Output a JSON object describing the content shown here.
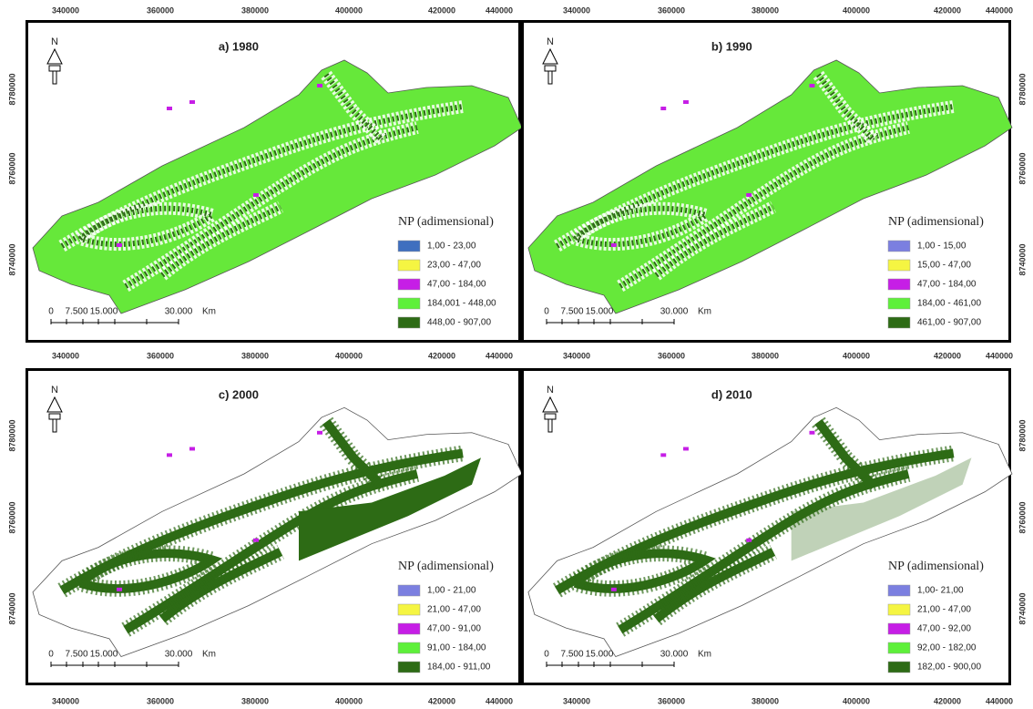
{
  "x_ticks": [
    "340000",
    "360000",
    "380000",
    "400000",
    "420000",
    "440000"
  ],
  "y_ticks": [
    "8780000",
    "8760000",
    "8740000"
  ],
  "north": "N",
  "scale_labels": [
    "0",
    "7.500",
    "15.000",
    "30.000",
    "Km"
  ],
  "panels": [
    {
      "title": "a) 1980",
      "legend": {
        "title": "NP (adimensional)",
        "items": [
          {
            "label": "1,00 - 23,00",
            "color": "#3f6fbf"
          },
          {
            "label": "23,00 - 47,00",
            "color": "#f5f542"
          },
          {
            "label": "47,00 - 184,00",
            "color": "#c61ee6"
          },
          {
            "label": "184,001 - 448,00",
            "color": "#5ef03a"
          },
          {
            "label": "448,00 - 907,00",
            "color": "#2d6b15"
          }
        ]
      }
    },
    {
      "title": "b) 1990",
      "legend": {
        "title": "NP (adimensional)",
        "items": [
          {
            "label": "1,00 - 15,00",
            "color": "#7b7fe0"
          },
          {
            "label": "15,00 - 47,00",
            "color": "#f5f542"
          },
          {
            "label": "47,00 - 184,00",
            "color": "#c61ee6"
          },
          {
            "label": "184,00 - 461,00",
            "color": "#5ef03a"
          },
          {
            "label": "461,00 - 907,00",
            "color": "#2d6b15"
          }
        ]
      }
    },
    {
      "title": "c) 2000",
      "legend": {
        "title": "NP (adimensional)",
        "items": [
          {
            "label": "1,00 - 21,00",
            "color": "#7b7fe0"
          },
          {
            "label": "21,00 - 47,00",
            "color": "#f5f542"
          },
          {
            "label": "47,00 - 91,00",
            "color": "#c61ee6"
          },
          {
            "label": "91,00 - 184,00",
            "color": "#5ef03a"
          },
          {
            "label": "184,00 - 911,00",
            "color": "#2d6b15"
          }
        ]
      }
    },
    {
      "title": "d) 2010",
      "legend": {
        "title": "NP (adimensional)",
        "items": [
          {
            "label": "1,00- 21,00",
            "color": "#7b7fe0"
          },
          {
            "label": "21,00 - 47,00",
            "color": "#f5f542"
          },
          {
            "label": "47,00 - 92,00",
            "color": "#c61ee6"
          },
          {
            "label": "92,00 - 182,00",
            "color": "#5ef03a"
          },
          {
            "label": "182,00 - 900,00",
            "color": "#2d6b15"
          }
        ]
      }
    }
  ]
}
